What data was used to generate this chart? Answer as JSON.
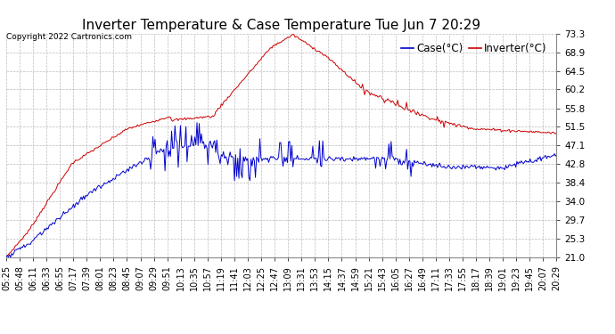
{
  "title": "Inverter Temperature & Case Temperature Tue Jun 7 20:29",
  "copyright": "Copyright 2022 Cartronics.com",
  "legend_case": "Case(°C)",
  "legend_inverter": "Inverter(°C)",
  "y_ticks": [
    21.0,
    25.3,
    29.7,
    34.0,
    38.4,
    42.8,
    47.1,
    51.5,
    55.8,
    60.2,
    64.5,
    68.9,
    73.3
  ],
  "ylim": [
    21.0,
    73.3
  ],
  "background_color": "#ffffff",
  "grid_color": "#bbbbbb",
  "case_color": "#0000cc",
  "inverter_color": "#cc0000",
  "title_fontsize": 11,
  "tick_fontsize": 7.5,
  "legend_fontsize": 8.5
}
